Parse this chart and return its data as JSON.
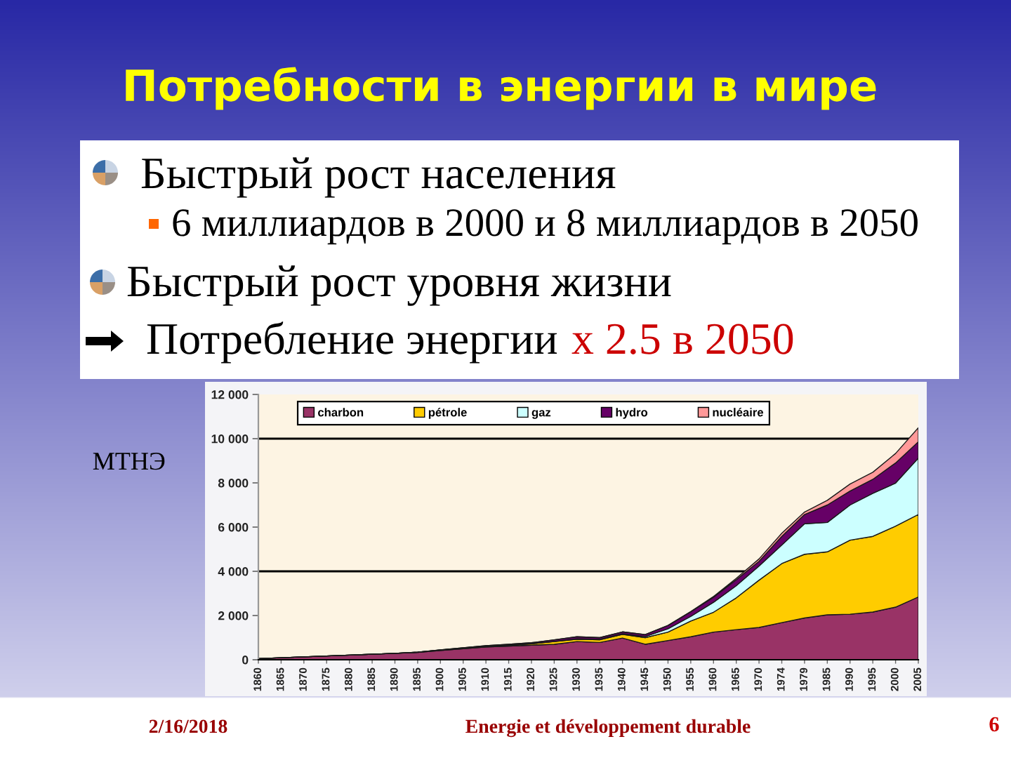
{
  "chart_data": {
    "type": "area",
    "title": "Потребности в энергии в мире",
    "ylabel": "МТНЭ",
    "stacked": true,
    "categories": [
      "1860",
      "1865",
      "1870",
      "1875",
      "1880",
      "1885",
      "1890",
      "1895",
      "1900",
      "1905",
      "1910",
      "1915",
      "1920",
      "1925",
      "1930",
      "1935",
      "1940",
      "1945",
      "1950",
      "1955",
      "1960",
      "1965",
      "1970",
      "1974",
      "1979",
      "1985",
      "1990",
      "1995",
      "2000",
      "2005"
    ],
    "series": [
      {
        "name": "charbon",
        "color": "#993366",
        "values": [
          50,
          90,
          130,
          170,
          210,
          250,
          290,
          330,
          420,
          500,
          580,
          620,
          660,
          700,
          820,
          780,
          980,
          700,
          870,
          1040,
          1250,
          1360,
          1460,
          1680,
          1890,
          2030,
          2060,
          2160,
          2380,
          2840
        ]
      },
      {
        "name": "pétrole",
        "color": "#ffcc00",
        "values": [
          0,
          0,
          0,
          0,
          0,
          0,
          0,
          10,
          20,
          20,
          30,
          40,
          60,
          120,
          110,
          120,
          170,
          300,
          380,
          710,
          900,
          1440,
          2140,
          2670,
          2880,
          2850,
          3350,
          3420,
          3660,
          3730
        ]
      },
      {
        "name": "gaz",
        "color": "#ccffff",
        "values": [
          0,
          0,
          0,
          0,
          0,
          0,
          0,
          0,
          0,
          10,
          10,
          10,
          10,
          10,
          20,
          20,
          30,
          50,
          150,
          210,
          450,
          550,
          640,
          840,
          1380,
          1330,
          1590,
          1950,
          1950,
          2550
        ]
      },
      {
        "name": "hydro",
        "color": "#660066",
        "values": [
          0,
          0,
          0,
          0,
          0,
          0,
          0,
          0,
          10,
          10,
          20,
          30,
          40,
          70,
          90,
          80,
          80,
          90,
          150,
          210,
          230,
          270,
          210,
          390,
          420,
          790,
          630,
          630,
          910,
          740
        ]
      },
      {
        "name": "nucléaire",
        "color": "#ff9999",
        "values": [
          0,
          0,
          0,
          0,
          0,
          0,
          0,
          0,
          0,
          0,
          0,
          0,
          0,
          0,
          0,
          0,
          0,
          0,
          0,
          10,
          30,
          60,
          110,
          140,
          110,
          210,
          320,
          320,
          430,
          630
        ]
      }
    ],
    "ylim": [
      0,
      12000
    ],
    "yticks": [
      0,
      {
        "value": 2000,
        "label": "2 000"
      },
      {
        "value": 4000,
        "label": "4 000"
      },
      {
        "value": 6000,
        "label": "6 000"
      },
      {
        "value": 8000,
        "label": "8 000"
      },
      {
        "value": 10000,
        "label": "10 000"
      },
      {
        "value": 12000,
        "label": "12 000"
      }
    ],
    "ref_lines": [
      {
        "axis": "y",
        "value": 4000,
        "color": "#000000"
      },
      {
        "axis": "y",
        "value": 10000,
        "color": "#000000"
      }
    ],
    "legend": "top",
    "annotations": [
      "Быстрый рост населения",
      "6 миллиардов в 2000 и 8 миллиардов в 2050",
      "Быстрый рост уровня жизни",
      "Потребление энергии",
      "x 2.5 в 2050",
      "2/16/2018",
      "Energie et développement durable",
      "6"
    ]
  }
}
